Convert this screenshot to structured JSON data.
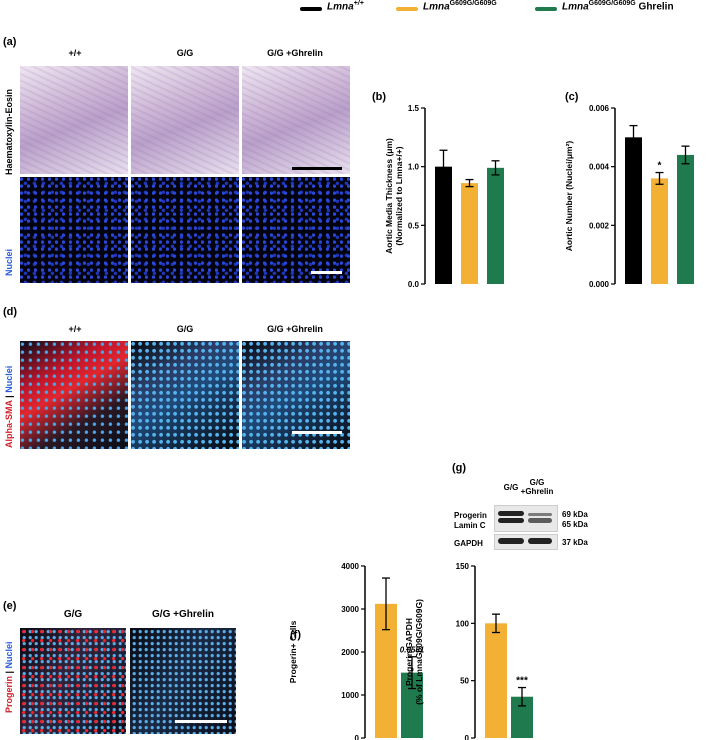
{
  "legend": {
    "wt": {
      "base": "Lmna",
      "sup": "+/+",
      "suffix": "",
      "color": "#000000"
    },
    "gg": {
      "base": "Lmna",
      "sup": "G609G/G609G",
      "suffix": "",
      "color": "#F2B134"
    },
    "ghr": {
      "base": "Lmna",
      "sup": "G609G/G609G",
      "suffix": "Ghrelin",
      "color": "#1F7A4D"
    }
  },
  "panels": {
    "a": {
      "label": "(a)",
      "cols": [
        "+/+",
        "G/G",
        "G/G +Ghrelin"
      ],
      "row1": "Haematoxylin-Eosin",
      "row2": "Nuclei"
    },
    "d": {
      "label": "(d)",
      "cols": [
        "+/+",
        "G/G",
        "G/G +Ghrelin"
      ],
      "row_a": "Alpha-SMA",
      "row_sep": " | ",
      "row_b": "Nuclei"
    },
    "e": {
      "label": "(e)",
      "cols": [
        "G/G",
        "G/G +Ghrelin"
      ],
      "row_a": "Progerin",
      "row_sep": " | ",
      "row_b": "Nuclei"
    },
    "g_blot": {
      "label": "(g)",
      "lanes": [
        "G/G",
        "G/G\n+Ghrelin"
      ],
      "bands": [
        "Progerin",
        "Lamin C",
        "GAPDH"
      ],
      "kda": [
        "69 kDa",
        "65 kDa",
        "37 kDa"
      ]
    }
  },
  "chart_data": [
    {
      "panel": "(b)",
      "type": "bar",
      "categories": [
        "Lmna+/+",
        "LmnaG609G/G609G",
        "LmnaG609G/G609G Ghrelin"
      ],
      "values": [
        1.0,
        0.86,
        0.99
      ],
      "errors": [
        0.14,
        0.03,
        0.06
      ],
      "colors": [
        "#000000",
        "#F2B134",
        "#1F7A4D"
      ],
      "ylabel": "Aortic Media Thickness (μm)",
      "ylabel2": "(Normalized to Lmna+/+)",
      "ylim": [
        0,
        1.5
      ],
      "yticks": [
        "0.0",
        "0.5",
        "1.0",
        "1.5"
      ],
      "annotations": []
    },
    {
      "panel": "(c)",
      "type": "bar",
      "categories": [
        "Lmna+/+",
        "LmnaG609G/G609G",
        "LmnaG609G/G609G Ghrelin"
      ],
      "values": [
        0.005,
        0.0036,
        0.0044
      ],
      "errors": [
        0.0004,
        0.0002,
        0.0003
      ],
      "colors": [
        "#000000",
        "#F2B134",
        "#1F7A4D"
      ],
      "ylabel": "Aortic Number (Nuclei/μm²)",
      "ylim": [
        0,
        0.006
      ],
      "yticks": [
        "0.000",
        "0.002",
        "0.004",
        "0.006"
      ],
      "annotations": [
        {
          "bar": 1,
          "text": "*"
        }
      ]
    },
    {
      "panel": "(f)",
      "type": "bar",
      "categories": [
        "G/G",
        "G/G +Ghrelin"
      ],
      "values": [
        3120,
        1520
      ],
      "errors": [
        600,
        370
      ],
      "colors": [
        "#F2B134",
        "#1F7A4D"
      ],
      "ylabel": "Progerin+ Cells",
      "ylim": [
        0,
        4000
      ],
      "yticks": [
        "0",
        "1000",
        "2000",
        "3000",
        "4000"
      ],
      "annotations": [
        {
          "bar": 1,
          "text": "0.0581"
        }
      ]
    },
    {
      "panel": "(g)",
      "type": "bar",
      "categories": [
        "G/G",
        "G/G +Ghrelin"
      ],
      "values": [
        100,
        36
      ],
      "errors": [
        8,
        8
      ],
      "colors": [
        "#F2B134",
        "#1F7A4D"
      ],
      "ylabel": "Progerin/GAPDH",
      "ylabel2": "(% of LmnaG609G/G609G)",
      "ylim": [
        0,
        150
      ],
      "yticks": [
        "0",
        "50",
        "100",
        "150"
      ],
      "annotations": [
        {
          "bar": 1,
          "text": "***"
        }
      ]
    }
  ]
}
